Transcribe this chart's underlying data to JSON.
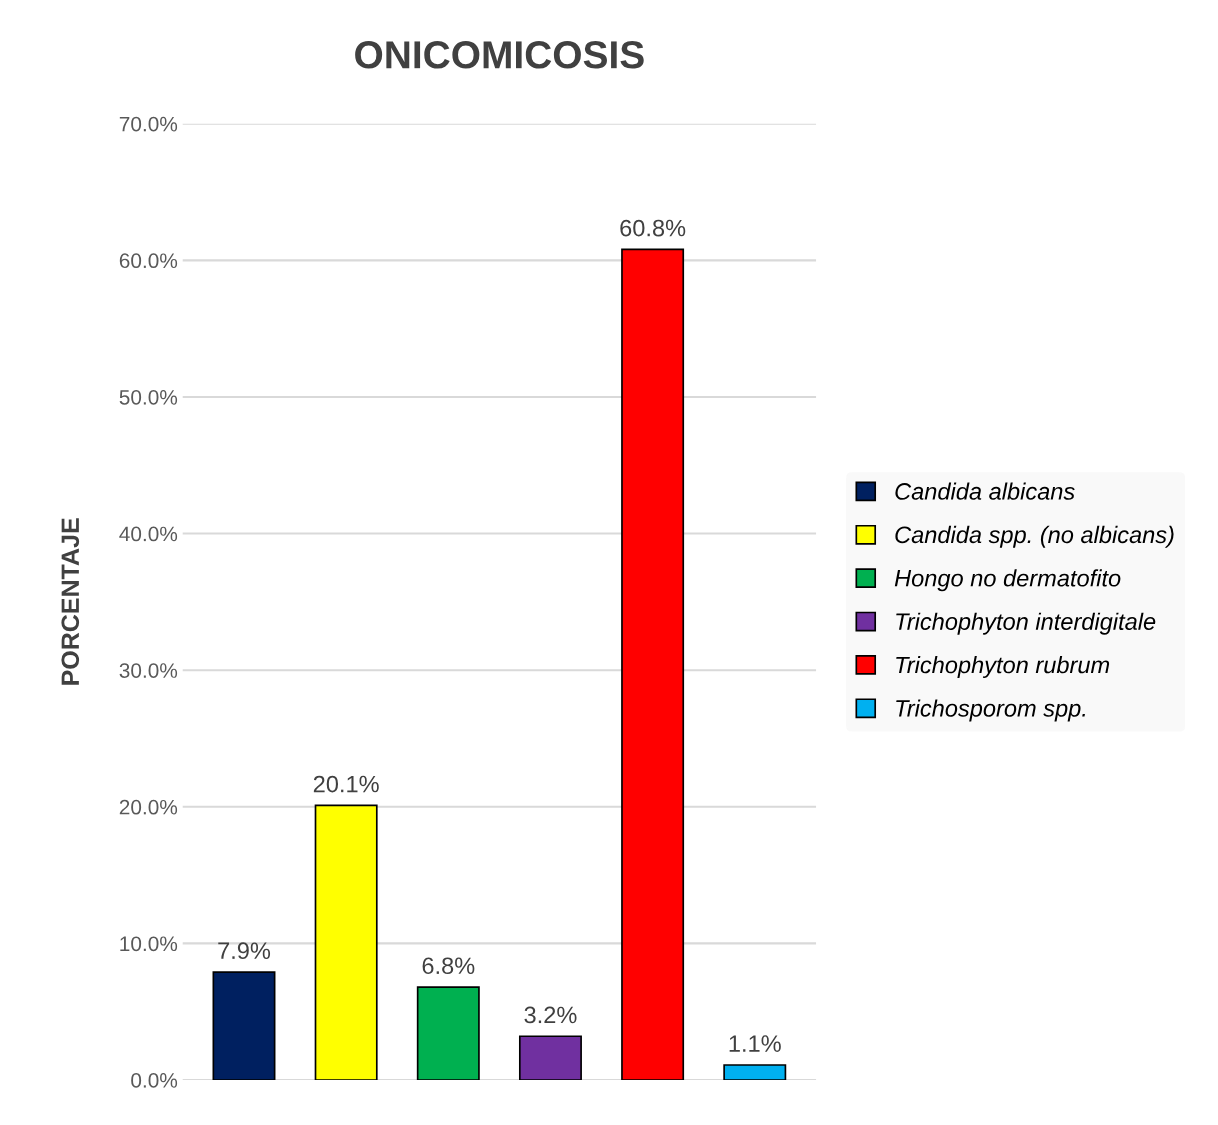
{
  "chart_data": {
    "type": "bar",
    "title": "ONICOMICOSIS",
    "ylabel": "PORCENTAJE",
    "categories": [
      null,
      null,
      null,
      null,
      null,
      null
    ],
    "series": [
      {
        "name": "Candida albicans",
        "color": "#002060",
        "values": [
          7.9,
          null,
          null,
          null,
          null,
          null
        ]
      },
      {
        "name": "Candida spp. (no albicans)",
        "color": "#ffff00",
        "values": [
          null,
          20.1,
          null,
          null,
          null,
          null
        ]
      },
      {
        "name": "Hongo no dermatofito",
        "color": "#00b050",
        "values": [
          null,
          null,
          6.8,
          null,
          null,
          null
        ]
      },
      {
        "name": "Trichophyton interdigitale",
        "color": "#7030a0",
        "values": [
          null,
          null,
          null,
          3.2,
          null,
          null
        ]
      },
      {
        "name": "Trichophyton rubrum",
        "color": "#ff0000",
        "values": [
          null,
          null,
          null,
          null,
          60.8,
          null
        ]
      },
      {
        "name": "Trichosporom spp.",
        "color": "#00b0f0",
        "values": [
          null,
          null,
          null,
          null,
          null,
          1.1
        ]
      }
    ],
    "value_labels": [
      "7.9%",
      "20.1%",
      "6.8%",
      "3.2%",
      "60.8%",
      "1.1%"
    ],
    "ylim": [
      0,
      70
    ],
    "yticks": [
      {
        "value": 0,
        "label": "0.0%"
      },
      {
        "value": 10,
        "label": "10.0%"
      },
      {
        "value": 20,
        "label": "20.0%"
      },
      {
        "value": 30,
        "label": "30.0%"
      },
      {
        "value": 40,
        "label": "40.0%"
      },
      {
        "value": 50,
        "label": "50.0%"
      },
      {
        "value": 60,
        "label": "60.0%"
      },
      {
        "value": 70,
        "label": "70.0%"
      }
    ],
    "grid": "y",
    "legend": "right",
    "tick_labels": "y"
  }
}
